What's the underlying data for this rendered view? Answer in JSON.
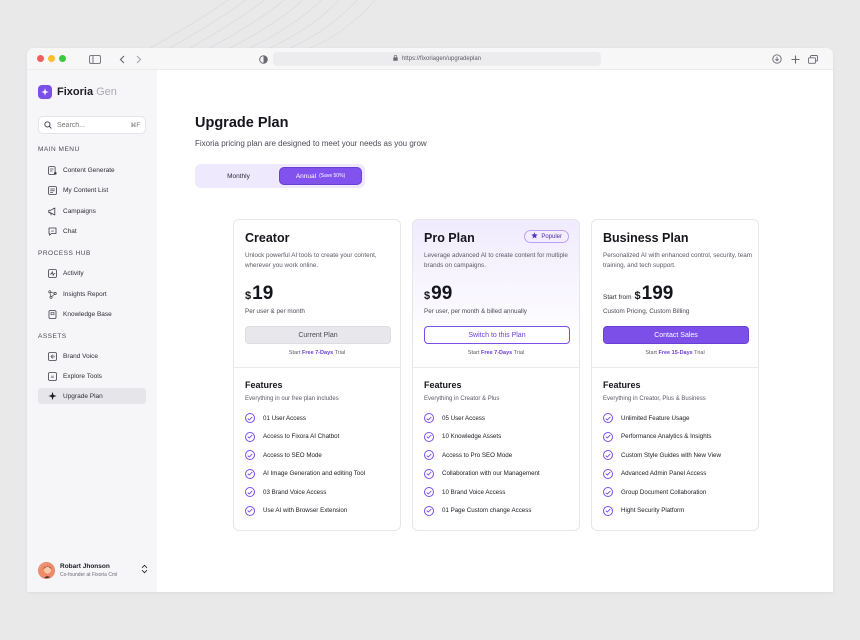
{
  "browser": {
    "url": "https://fixoriagen/upgradeplan"
  },
  "colors": {
    "accent": "#7b4fe8",
    "accent_dark": "#6a3fd8",
    "accent_light": "#efe9fd",
    "sidebar_bg": "#f6f6f8"
  },
  "sidebar": {
    "logo_name": "Fixoria",
    "logo_sub": "Gen",
    "search_placeholder": "Search...",
    "search_shortcut": "⌘F",
    "sections": [
      {
        "label": "MAIN MENU",
        "items": [
          {
            "label": "Content Generate",
            "icon": "content-generate-icon"
          },
          {
            "label": "My Content List",
            "icon": "content-list-icon"
          },
          {
            "label": "Campaigns",
            "icon": "megaphone-icon"
          },
          {
            "label": "Chat",
            "icon": "ai-chat-icon"
          }
        ]
      },
      {
        "label": "PROCESS HUB",
        "items": [
          {
            "label": "Activity",
            "icon": "activity-icon"
          },
          {
            "label": "Insights Report",
            "icon": "insights-icon"
          },
          {
            "label": "Knowledge Base",
            "icon": "book-icon"
          }
        ]
      },
      {
        "label": "ASSETS",
        "items": [
          {
            "label": "Brand Voice",
            "icon": "brand-voice-icon"
          },
          {
            "label": "Explore Tools",
            "icon": "ai-tools-icon"
          },
          {
            "label": "Upgrade Plan",
            "icon": "sparkle-icon",
            "active": true
          }
        ]
      }
    ],
    "user": {
      "name": "Robart Jhonson",
      "role": "Co-founder at Fixoria Cml"
    }
  },
  "main": {
    "title": "Upgrade Plan",
    "subtitle": "Fixoria pricing plan are designed to meet your needs as you grow",
    "billing_toggle": {
      "monthly": "Monthly",
      "annual": "Annual",
      "annual_tag": "(Save 50%)",
      "selected": "annual"
    },
    "plans": [
      {
        "name": "Creator",
        "badge": "",
        "description": "Unlock powerful AI tools to create your content, wherever you work online.",
        "price_prefix": "",
        "currency": "$",
        "price": "19",
        "price_note": "Per user & per month",
        "cta": "Current Plan",
        "cta_style": "current",
        "trial_prefix": "Start",
        "trial_highlight": "Free 7-Days",
        "trial_suffix": "Trial",
        "features_title": "Features",
        "features_sub": "Everything in our free plan includes",
        "features": [
          "01 User Access",
          "Access to Fixora AI Chatbot",
          "Access to SEO Mode",
          "AI Image Generation and editing Tool",
          "03 Brand Voice Access",
          "Use AI with Browser Extension"
        ]
      },
      {
        "name": "Pro Plan",
        "badge": "Populer",
        "description": "Leverage advanced AI to create content for multiple brands on campaigns.",
        "price_prefix": "",
        "currency": "$",
        "price": "99",
        "price_note": "Per user, per month & billed annually",
        "cta": "Switch to this Plan",
        "cta_style": "outline",
        "trial_prefix": "Start",
        "trial_highlight": "Free 7-Days",
        "trial_suffix": "Trial",
        "features_title": "Features",
        "features_sub": "Everything in Creator & Plus",
        "features": [
          "05 User Access",
          "10 Knowledge Assets",
          "Access to Pro SEO Mode",
          "Collaboration with our Management",
          "10 Brand Voice Access",
          "01 Page Custom change Access"
        ]
      },
      {
        "name": "Business Plan",
        "badge": "",
        "description": "Personalized AI with enhanced control, security, team training, and tech support.",
        "price_prefix": "Start from",
        "currency": "$",
        "price": "199",
        "price_note": "Custom Pricing, Custom Billing",
        "cta": "Contact Sales",
        "cta_style": "filled",
        "trial_prefix": "Start",
        "trial_highlight": "Free 15-Days",
        "trial_suffix": "Trial",
        "features_title": "Features",
        "features_sub": "Everything in Creator, Plus & Business",
        "features": [
          "Unlimited Feature Usage",
          "Performance Analytics & Insights",
          "Custom Style Guides with New View",
          "Advanced Admin Panel Access",
          "Group Document Collaboration",
          "Hight Security Platform"
        ]
      }
    ]
  }
}
